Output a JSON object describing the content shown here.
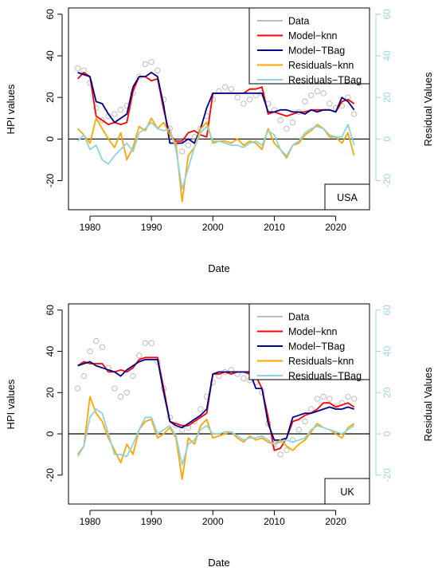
{
  "chart_data": [
    {
      "type": "line",
      "panel_label": "USA",
      "xlabel": "Date",
      "ylabel": "HPI values",
      "ylabel_right": "Residual Values",
      "xlim": [
        1976.5,
        2025.5
      ],
      "ylim": [
        -34,
        63
      ],
      "xticks": [
        "1980",
        "1990",
        "2000",
        "2010",
        "2020"
      ],
      "yticks_left": [
        "-20",
        "0",
        "20",
        "40",
        "60"
      ],
      "yticks_right": [
        "-20",
        "0",
        "20",
        "40",
        "60"
      ],
      "grid": false,
      "legend_position": "top-right",
      "legend": [
        "Data",
        "Model−knn",
        "Model−TBag",
        "Residuals−knn",
        "Residuals−TBag"
      ],
      "colors": {
        "data": "#bdbdbd",
        "knn": "#ff0000",
        "tbag": "#00008b",
        "res_knn": "#ffa500",
        "res_tbag": "#8fd3dd"
      },
      "series": [
        {
          "name": "Data",
          "style": "points",
          "x": [
            1978,
            1979,
            1980,
            1981,
            1982,
            1983,
            1984,
            1985,
            1986,
            1987,
            1988,
            1989,
            1990,
            1991,
            1992,
            1993,
            1994,
            1995,
            1996,
            1997,
            1998,
            1999,
            2000,
            2001,
            2002,
            2003,
            2004,
            2005,
            2006,
            2007,
            2008,
            2009,
            2010,
            2011,
            2012,
            2013,
            2014,
            2015,
            2016,
            2017,
            2018,
            2019,
            2020,
            2021,
            2022,
            2023
          ],
          "y": [
            34,
            33,
            27,
            15,
            9,
            11,
            12,
            14,
            16,
            22,
            30,
            36,
            37,
            33,
            19,
            5,
            -2,
            -6,
            -3,
            1,
            5,
            11,
            19,
            23,
            25,
            24,
            20,
            17,
            19,
            21,
            22,
            17,
            14,
            9,
            5,
            8,
            13,
            18,
            21,
            23,
            22,
            17,
            15,
            16,
            20,
            12
          ]
        },
        {
          "name": "Model−knn",
          "x": [
            1978,
            1979,
            1980,
            1981,
            1982,
            1983,
            1984,
            1985,
            1986,
            1987,
            1988,
            1989,
            1990,
            1991,
            1992,
            1993,
            1994,
            1995,
            1996,
            1997,
            1998,
            1999,
            2000,
            2001,
            2002,
            2003,
            2004,
            2005,
            2006,
            2007,
            2008,
            2009,
            2010,
            2011,
            2012,
            2013,
            2014,
            2015,
            2016,
            2017,
            2018,
            2019,
            2020,
            2021,
            2022,
            2023
          ],
          "y": [
            29,
            32,
            30,
            11,
            9,
            7,
            8,
            7,
            8,
            23,
            30,
            30,
            28,
            29,
            14,
            2,
            -1,
            -1,
            3,
            4,
            2,
            1,
            22,
            22,
            22,
            22,
            22,
            22,
            24,
            24,
            25,
            12,
            13,
            12,
            11,
            12,
            13,
            13,
            14,
            14,
            14,
            14,
            13,
            18,
            19,
            17
          ]
        },
        {
          "name": "Model−TBag",
          "x": [
            1978,
            1979,
            1980,
            1981,
            1982,
            1983,
            1984,
            1985,
            1986,
            1987,
            1988,
            1989,
            1990,
            1991,
            1992,
            1993,
            1994,
            1995,
            1996,
            1997,
            1998,
            1999,
            2000,
            2001,
            2002,
            2003,
            2004,
            2005,
            2006,
            2007,
            2008,
            2009,
            2010,
            2011,
            2012,
            2013,
            2014,
            2015,
            2016,
            2017,
            2018,
            2019,
            2020,
            2021,
            2022,
            2023
          ],
          "y": [
            32,
            31,
            30,
            18,
            17,
            12,
            8,
            10,
            12,
            25,
            30,
            30,
            32,
            30,
            16,
            -2,
            -2,
            -2,
            0,
            -2,
            5,
            15,
            22,
            22,
            22,
            22,
            22,
            22,
            22,
            22,
            22,
            13,
            13,
            14,
            14,
            13,
            13,
            12,
            14,
            13,
            14,
            14,
            13,
            20,
            18,
            14
          ]
        },
        {
          "name": "Residuals−knn",
          "x": [
            1978,
            1979,
            1980,
            1981,
            1982,
            1983,
            1984,
            1985,
            1986,
            1987,
            1988,
            1989,
            1990,
            1991,
            1992,
            1993,
            1994,
            1995,
            1996,
            1997,
            1998,
            1999,
            2000,
            2001,
            2002,
            2003,
            2004,
            2005,
            2006,
            2007,
            2008,
            2009,
            2010,
            2011,
            2012,
            2013,
            2014,
            2015,
            2016,
            2017,
            2018,
            2019,
            2020,
            2021,
            2022,
            2023
          ],
          "y": [
            5,
            2,
            -2,
            10,
            5,
            0,
            -4,
            3,
            -10,
            -4,
            6,
            4,
            10,
            5,
            8,
            2,
            -2,
            -30,
            -8,
            -4,
            5,
            8,
            -2,
            -1,
            -1,
            -2,
            0,
            -3,
            -1,
            -2,
            -5,
            5,
            -2,
            -5,
            -9,
            -3,
            -2,
            2,
            4,
            7,
            5,
            1,
            1,
            -2,
            3,
            -8
          ]
        },
        {
          "name": "Residuals−TBag",
          "x": [
            1978,
            1979,
            1980,
            1981,
            1982,
            1983,
            1984,
            1985,
            1986,
            1987,
            1988,
            1989,
            1990,
            1991,
            1992,
            1993,
            1994,
            1995,
            1996,
            1997,
            1998,
            1999,
            2000,
            2001,
            2002,
            2003,
            2004,
            2005,
            2006,
            2007,
            2008,
            2009,
            2010,
            2011,
            2012,
            2013,
            2014,
            2015,
            2016,
            2017,
            2018,
            2019,
            2020,
            2021,
            2022,
            2023
          ],
          "y": [
            -1,
            2,
            -5,
            -3,
            -10,
            -12,
            -8,
            -5,
            -2,
            -6,
            3,
            5,
            8,
            5,
            4,
            5,
            -5,
            -24,
            -14,
            -4,
            3,
            6,
            -1,
            -1,
            -2,
            -3,
            -3,
            -4,
            -2,
            -1,
            -3,
            4,
            2,
            -5,
            -8,
            -3,
            -1,
            3,
            5,
            6,
            5,
            2,
            1,
            1,
            7,
            -3
          ]
        }
      ]
    },
    {
      "type": "line",
      "panel_label": "UK",
      "xlabel": "Date",
      "ylabel": "HPI values",
      "ylabel_right": "Residual Values",
      "xlim": [
        1976.5,
        2025.5
      ],
      "ylim": [
        -34,
        63
      ],
      "xticks": [
        "1980",
        "1990",
        "2000",
        "2010",
        "2020"
      ],
      "yticks_left": [
        "-20",
        "0",
        "20",
        "40",
        "60"
      ],
      "yticks_right": [
        "-20",
        "0",
        "20",
        "40",
        "60"
      ],
      "grid": false,
      "legend_position": "top-right",
      "legend": [
        "Data",
        "Model−knn",
        "Model−TBag",
        "Residuals−knn",
        "Residuals−TBag"
      ],
      "colors": {
        "data": "#bdbdbd",
        "knn": "#ff0000",
        "tbag": "#00008b",
        "res_knn": "#ffa500",
        "res_tbag": "#8fd3dd"
      },
      "series": [
        {
          "name": "Data",
          "style": "points",
          "x": [
            1978,
            1979,
            1980,
            1981,
            1982,
            1983,
            1984,
            1985,
            1986,
            1987,
            1988,
            1989,
            1990,
            1991,
            1992,
            1993,
            1994,
            1995,
            1996,
            1997,
            1998,
            1999,
            2000,
            2001,
            2002,
            2003,
            2004,
            2005,
            2006,
            2007,
            2008,
            2009,
            2010,
            2011,
            2012,
            2013,
            2014,
            2015,
            2016,
            2017,
            2018,
            2019,
            2020,
            2021,
            2022,
            2023
          ],
          "y": [
            22,
            28,
            40,
            45,
            42,
            32,
            22,
            18,
            20,
            28,
            38,
            44,
            44,
            35,
            22,
            8,
            4,
            2,
            3,
            6,
            12,
            18,
            25,
            28,
            30,
            31,
            29,
            27,
            26,
            25,
            20,
            5,
            -5,
            -10,
            -8,
            -3,
            2,
            6,
            12,
            17,
            18,
            17,
            13,
            15,
            18,
            17
          ]
        },
        {
          "name": "Model−knn",
          "x": [
            1978,
            1979,
            1980,
            1981,
            1982,
            1983,
            1984,
            1985,
            1986,
            1987,
            1988,
            1989,
            1990,
            1991,
            1992,
            1993,
            1994,
            1995,
            1996,
            1997,
            1998,
            1999,
            2000,
            2001,
            2002,
            2003,
            2004,
            2005,
            2006,
            2007,
            2008,
            2009,
            2010,
            2011,
            2012,
            2013,
            2014,
            2015,
            2016,
            2017,
            2018,
            2019,
            2020,
            2021,
            2022,
            2023
          ],
          "y": [
            33,
            35,
            34,
            34,
            34,
            30,
            30,
            31,
            30,
            32,
            36,
            37,
            37,
            37,
            22,
            6,
            5,
            4,
            4,
            6,
            8,
            10,
            29,
            29,
            30,
            29,
            30,
            30,
            29,
            28,
            22,
            8,
            -8,
            -7,
            -2,
            6,
            7,
            9,
            10,
            12,
            15,
            15,
            13,
            14,
            15,
            13
          ]
        },
        {
          "name": "Model−TBag",
          "x": [
            1978,
            1979,
            1980,
            1981,
            1982,
            1983,
            1984,
            1985,
            1986,
            1987,
            1988,
            1989,
            1990,
            1991,
            1992,
            1993,
            1994,
            1995,
            1996,
            1997,
            1998,
            1999,
            2000,
            2001,
            2002,
            2003,
            2004,
            2005,
            2006,
            2007,
            2008,
            2009,
            2010,
            2011,
            2012,
            2013,
            2014,
            2015,
            2016,
            2017,
            2018,
            2019,
            2020,
            2021,
            2022,
            2023
          ],
          "y": [
            33,
            34,
            35,
            33,
            32,
            31,
            30,
            28,
            31,
            33,
            35,
            36,
            36,
            36,
            20,
            6,
            4,
            3,
            5,
            7,
            9,
            12,
            29,
            30,
            30,
            30,
            30,
            30,
            30,
            22,
            22,
            5,
            -3,
            -3,
            -2,
            8,
            9,
            10,
            10,
            11,
            12,
            13,
            12,
            12,
            13,
            12
          ]
        },
        {
          "name": "Residuals−knn",
          "x": [
            1978,
            1979,
            1980,
            1981,
            1982,
            1983,
            1984,
            1985,
            1986,
            1987,
            1988,
            1989,
            1990,
            1991,
            1992,
            1993,
            1994,
            1995,
            1996,
            1997,
            1998,
            1999,
            2000,
            2001,
            2002,
            2003,
            2004,
            2005,
            2006,
            2007,
            2008,
            2009,
            2010,
            2011,
            2012,
            2013,
            2014,
            2015,
            2016,
            2017,
            2018,
            2019,
            2020,
            2021,
            2022,
            2023
          ],
          "y": [
            -10,
            -6,
            18,
            10,
            6,
            -2,
            -8,
            -14,
            -5,
            -10,
            2,
            6,
            7,
            -2,
            0,
            3,
            -2,
            -22,
            -2,
            -5,
            4,
            7,
            -2,
            -1,
            0,
            1,
            -2,
            -4,
            -1,
            -3,
            -2,
            -4,
            -5,
            -3,
            -6,
            -8,
            -5,
            -3,
            1,
            5,
            3,
            2,
            0,
            -2,
            3,
            5
          ]
        },
        {
          "name": "Residuals−TBag",
          "x": [
            1978,
            1979,
            1980,
            1981,
            1982,
            1983,
            1984,
            1985,
            1986,
            1987,
            1988,
            1989,
            1990,
            1991,
            1992,
            1993,
            1994,
            1995,
            1996,
            1997,
            1998,
            1999,
            2000,
            2001,
            2002,
            2003,
            2004,
            2005,
            2006,
            2007,
            2008,
            2009,
            2010,
            2011,
            2012,
            2013,
            2014,
            2015,
            2016,
            2017,
            2018,
            2019,
            2020,
            2021,
            2022,
            2023
          ],
          "y": [
            -11,
            -6,
            8,
            12,
            10,
            0,
            -10,
            -10,
            -11,
            -5,
            2,
            8,
            8,
            0,
            2,
            4,
            -1,
            -15,
            -5,
            -3,
            2,
            4,
            0,
            0,
            1,
            1,
            -1,
            -3,
            -2,
            -2,
            -1,
            -3,
            -5,
            -4,
            -3,
            -4,
            -3,
            -2,
            2,
            4,
            3,
            2,
            1,
            0,
            2,
            4
          ]
        }
      ]
    }
  ]
}
